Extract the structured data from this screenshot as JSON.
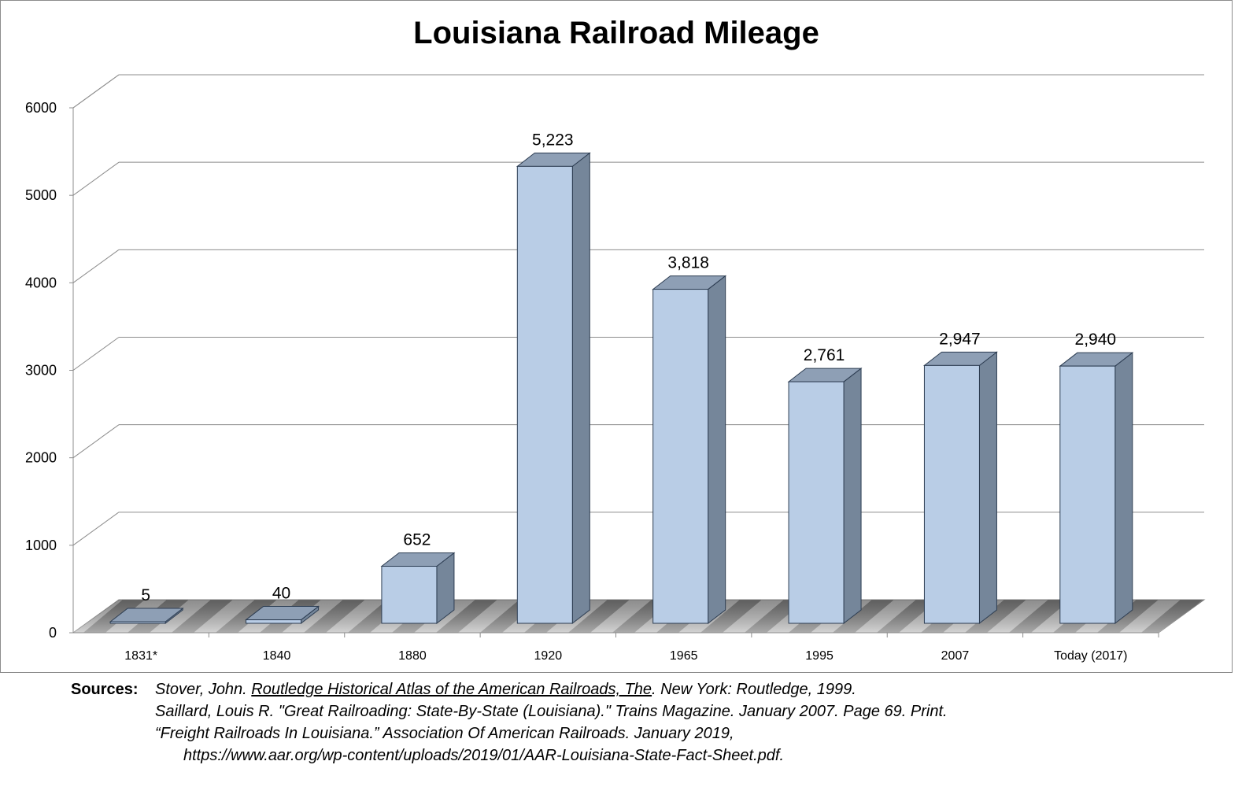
{
  "chart_data": {
    "type": "bar",
    "style": "3d-column",
    "title": "Louisiana Railroad Mileage",
    "xlabel": "",
    "ylabel": "",
    "categories": [
      "1831*",
      "1840",
      "1880",
      "1920",
      "1965",
      "1995",
      "2007",
      "Today  (2017)"
    ],
    "values": [
      5,
      40,
      652,
      5223,
      3818,
      2761,
      2947,
      2940
    ],
    "data_labels": [
      "5",
      "40",
      "652",
      "5,223",
      "3,818",
      "2,761",
      "2,947",
      "2,940"
    ],
    "ylim": [
      0,
      6000
    ],
    "yticks": [
      "0",
      "1000",
      "2000",
      "3000",
      "4000",
      "5000",
      "6000"
    ],
    "grid": true,
    "legend": "none",
    "colors": {
      "front": "#b9cde6",
      "side": "#75869a",
      "top": "#8e9fb5",
      "edge": "#2d3d52",
      "grid": "#8c8c8c"
    }
  },
  "sources": {
    "label": "Sources:",
    "line1_pre": "Stover, John. ",
    "line1_title": "Routledge Historical Atlas of the American Railroads, The",
    "line1_post": ". New York: Routledge, 1999.",
    "line2": "Saillard, Louis R. \"Great Railroading: State-By-State (Louisiana).\" Trains Magazine. January 2007. Page 69. Print.",
    "line3": "“Freight Railroads In Louisiana.” Association Of American Railroads. January 2019,",
    "line4": "https://www.aar.org/wp-content/uploads/2019/01/AAR-Louisiana-State-Fact-Sheet.pdf."
  }
}
